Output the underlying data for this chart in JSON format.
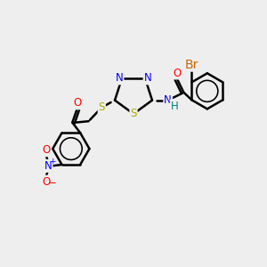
{
  "bg_color": "#eeeeee",
  "bond_color": "#000000",
  "bond_width": 1.8,
  "atom_colors": {
    "N": "#0000FF",
    "S": "#AAAA00",
    "O": "#FF0000",
    "Br": "#CC6600",
    "C": "#000000",
    "H": "#008080"
  },
  "font_size": 8.5,
  "fig_size": [
    3.0,
    3.0
  ],
  "dpi": 100
}
